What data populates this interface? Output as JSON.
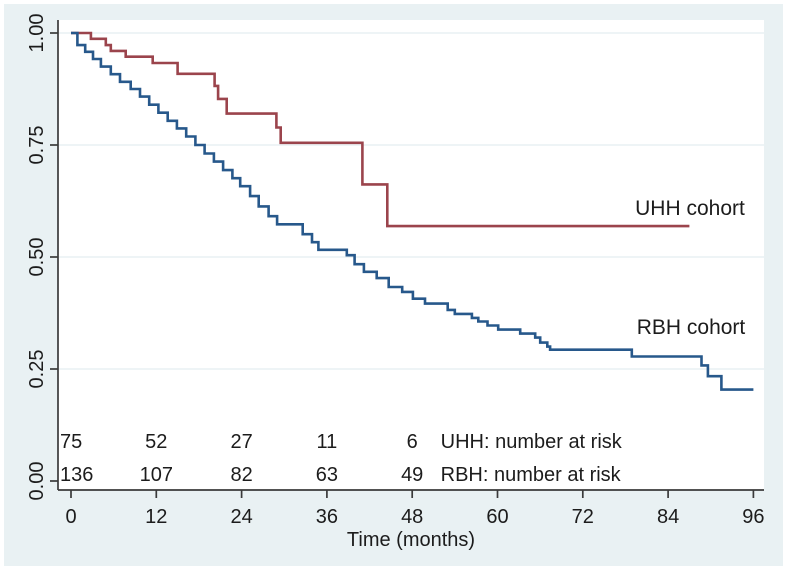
{
  "figure": {
    "outer_background": "#ffffff",
    "panel_background": "#e9f1f3",
    "plot_background": "#ffffff",
    "grid_color": "#e3edf0",
    "axis_color": "#3a3a3a",
    "text_color": "#1c1c1c"
  },
  "chart_data": {
    "type": "line",
    "subtype": "kaplan-meier-step",
    "title": "",
    "xlabel": "Time (months)",
    "ylabel": "",
    "xlim": [
      0,
      96
    ],
    "ylim": [
      0.0,
      1.0
    ],
    "x_tick_values": [
      0,
      12,
      24,
      36,
      48,
      60,
      72,
      84,
      96
    ],
    "x_tick_labels": [
      "0",
      "12",
      "24",
      "36",
      "48",
      "60",
      "72",
      "84",
      "96"
    ],
    "y_tick_values": [
      0.0,
      0.25,
      0.5,
      0.75,
      1.0
    ],
    "y_tick_labels": [
      "0.00",
      "0.25",
      "0.50",
      "0.75",
      "1.00"
    ],
    "grid": true,
    "legend_position": "curve-end-annotations",
    "series": [
      {
        "name": "UHH cohort",
        "color": "#9b444c",
        "end_t": 87,
        "points": [
          [
            0,
            1.0
          ],
          [
            2.8,
            0.987
          ],
          [
            4.9,
            0.973
          ],
          [
            5.6,
            0.96
          ],
          [
            7.7,
            0.947
          ],
          [
            11.5,
            0.933
          ],
          [
            15.0,
            0.909
          ],
          [
            20.2,
            0.882
          ],
          [
            20.7,
            0.853
          ],
          [
            21.9,
            0.82
          ],
          [
            28.9,
            0.789
          ],
          [
            29.5,
            0.755
          ],
          [
            41.0,
            0.662
          ],
          [
            44.5,
            0.569
          ]
        ]
      },
      {
        "name": "RBH cohort",
        "color": "#27588b",
        "end_t": 96,
        "points": [
          [
            0,
            1.0
          ],
          [
            0.9,
            0.973
          ],
          [
            2.0,
            0.958
          ],
          [
            3.1,
            0.942
          ],
          [
            4.2,
            0.925
          ],
          [
            5.6,
            0.908
          ],
          [
            6.9,
            0.891
          ],
          [
            8.4,
            0.875
          ],
          [
            9.7,
            0.858
          ],
          [
            11.0,
            0.84
          ],
          [
            12.3,
            0.822
          ],
          [
            13.6,
            0.804
          ],
          [
            14.9,
            0.787
          ],
          [
            16.2,
            0.769
          ],
          [
            17.5,
            0.75
          ],
          [
            18.8,
            0.731
          ],
          [
            20.1,
            0.713
          ],
          [
            21.4,
            0.694
          ],
          [
            22.7,
            0.676
          ],
          [
            23.8,
            0.658
          ],
          [
            25.2,
            0.636
          ],
          [
            26.4,
            0.613
          ],
          [
            27.8,
            0.591
          ],
          [
            29.0,
            0.573
          ],
          [
            32.6,
            0.551
          ],
          [
            33.9,
            0.533
          ],
          [
            34.8,
            0.516
          ],
          [
            38.8,
            0.504
          ],
          [
            39.9,
            0.484
          ],
          [
            41.2,
            0.467
          ],
          [
            43.0,
            0.453
          ],
          [
            44.7,
            0.433
          ],
          [
            46.6,
            0.422
          ],
          [
            48.1,
            0.407
          ],
          [
            49.8,
            0.396
          ],
          [
            53.0,
            0.382
          ],
          [
            54.0,
            0.373
          ],
          [
            56.4,
            0.364
          ],
          [
            57.3,
            0.356
          ],
          [
            58.6,
            0.347
          ],
          [
            60.1,
            0.338
          ],
          [
            63.2,
            0.329
          ],
          [
            65.3,
            0.32
          ],
          [
            66.0,
            0.309
          ],
          [
            67.0,
            0.3
          ],
          [
            67.4,
            0.293
          ],
          [
            78.9,
            0.278
          ],
          [
            88.7,
            0.258
          ],
          [
            89.6,
            0.234
          ],
          [
            91.5,
            0.204
          ]
        ]
      }
    ],
    "risk_table": {
      "times": [
        0,
        12,
        24,
        36,
        48
      ],
      "rows": [
        {
          "label": "UHH: number at risk",
          "counts": [
            "75",
            "52",
            "27",
            "11",
            "6"
          ]
        },
        {
          "label": "RBH: number at risk",
          "counts": [
            "136",
            "107",
            "82",
            "63",
            "49"
          ]
        }
      ]
    }
  }
}
